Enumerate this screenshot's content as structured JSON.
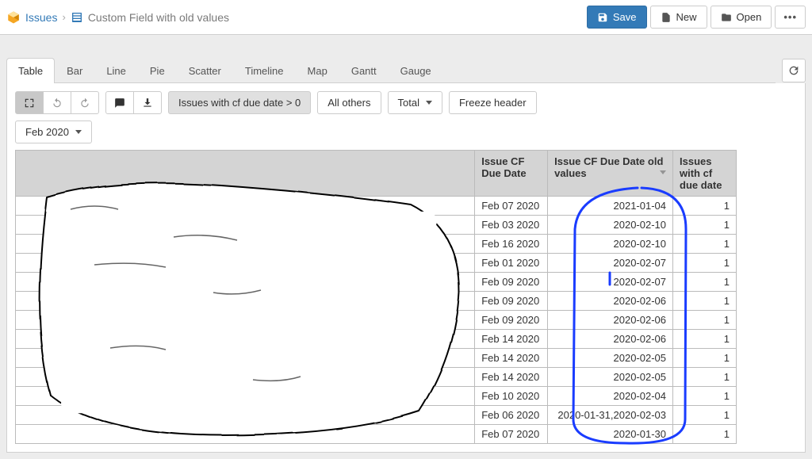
{
  "breadcrumb": {
    "root": "Issues",
    "title": "Custom Field with old values"
  },
  "topbar_actions": {
    "save": "Save",
    "new": "New",
    "open": "Open"
  },
  "tabs": {
    "table": "Table",
    "bar": "Bar",
    "line": "Line",
    "pie": "Pie",
    "scatter": "Scatter",
    "timeline": "Timeline",
    "map": "Map",
    "gantt": "Gantt",
    "gauge": "Gauge"
  },
  "toolbar": {
    "filter_label": "Issues with cf due date > 0",
    "all_others": "All others",
    "total": "Total",
    "freeze_header": "Freeze header",
    "month_filter": "Feb 2020"
  },
  "table": {
    "headers": {
      "due_date": "Issue CF Due Date",
      "old_values": "Issue CF Due Date old values",
      "issues_count": "Issues with cf due date"
    },
    "rows": [
      {
        "due_date": "Feb 07 2020",
        "old_values": "2021-01-04",
        "count": "1"
      },
      {
        "due_date": "Feb 03 2020",
        "old_values": "2020-02-10",
        "count": "1"
      },
      {
        "due_date": "Feb 16 2020",
        "old_values": "2020-02-10",
        "count": "1"
      },
      {
        "due_date": "Feb 01 2020",
        "old_values": "2020-02-07",
        "count": "1"
      },
      {
        "due_date": "Feb 09 2020",
        "old_values": "2020-02-07",
        "count": "1"
      },
      {
        "due_date": "Feb 09 2020",
        "old_values": "2020-02-06",
        "count": "1"
      },
      {
        "due_date": "Feb 09 2020",
        "old_values": "2020-02-06",
        "count": "1"
      },
      {
        "due_date": "Feb 14 2020",
        "old_values": "2020-02-06",
        "count": "1"
      },
      {
        "due_date": "Feb 14 2020",
        "old_values": "2020-02-05",
        "count": "1"
      },
      {
        "due_date": "Feb 14 2020",
        "old_values": "2020-02-05",
        "count": "1"
      },
      {
        "due_date": "Feb 10 2020",
        "old_values": "2020-02-04",
        "count": "1"
      },
      {
        "due_date": "Feb 06 2020",
        "old_values": "2020-01-31,2020-02-03",
        "count": "1"
      },
      {
        "due_date": "Feb 07 2020",
        "old_values": "2020-01-30",
        "count": "1"
      }
    ]
  },
  "colors": {
    "primary": "#337ab7",
    "header_bg": "#d4d4d4",
    "border": "#bbbbbb",
    "annotation": "#1a3cff"
  }
}
